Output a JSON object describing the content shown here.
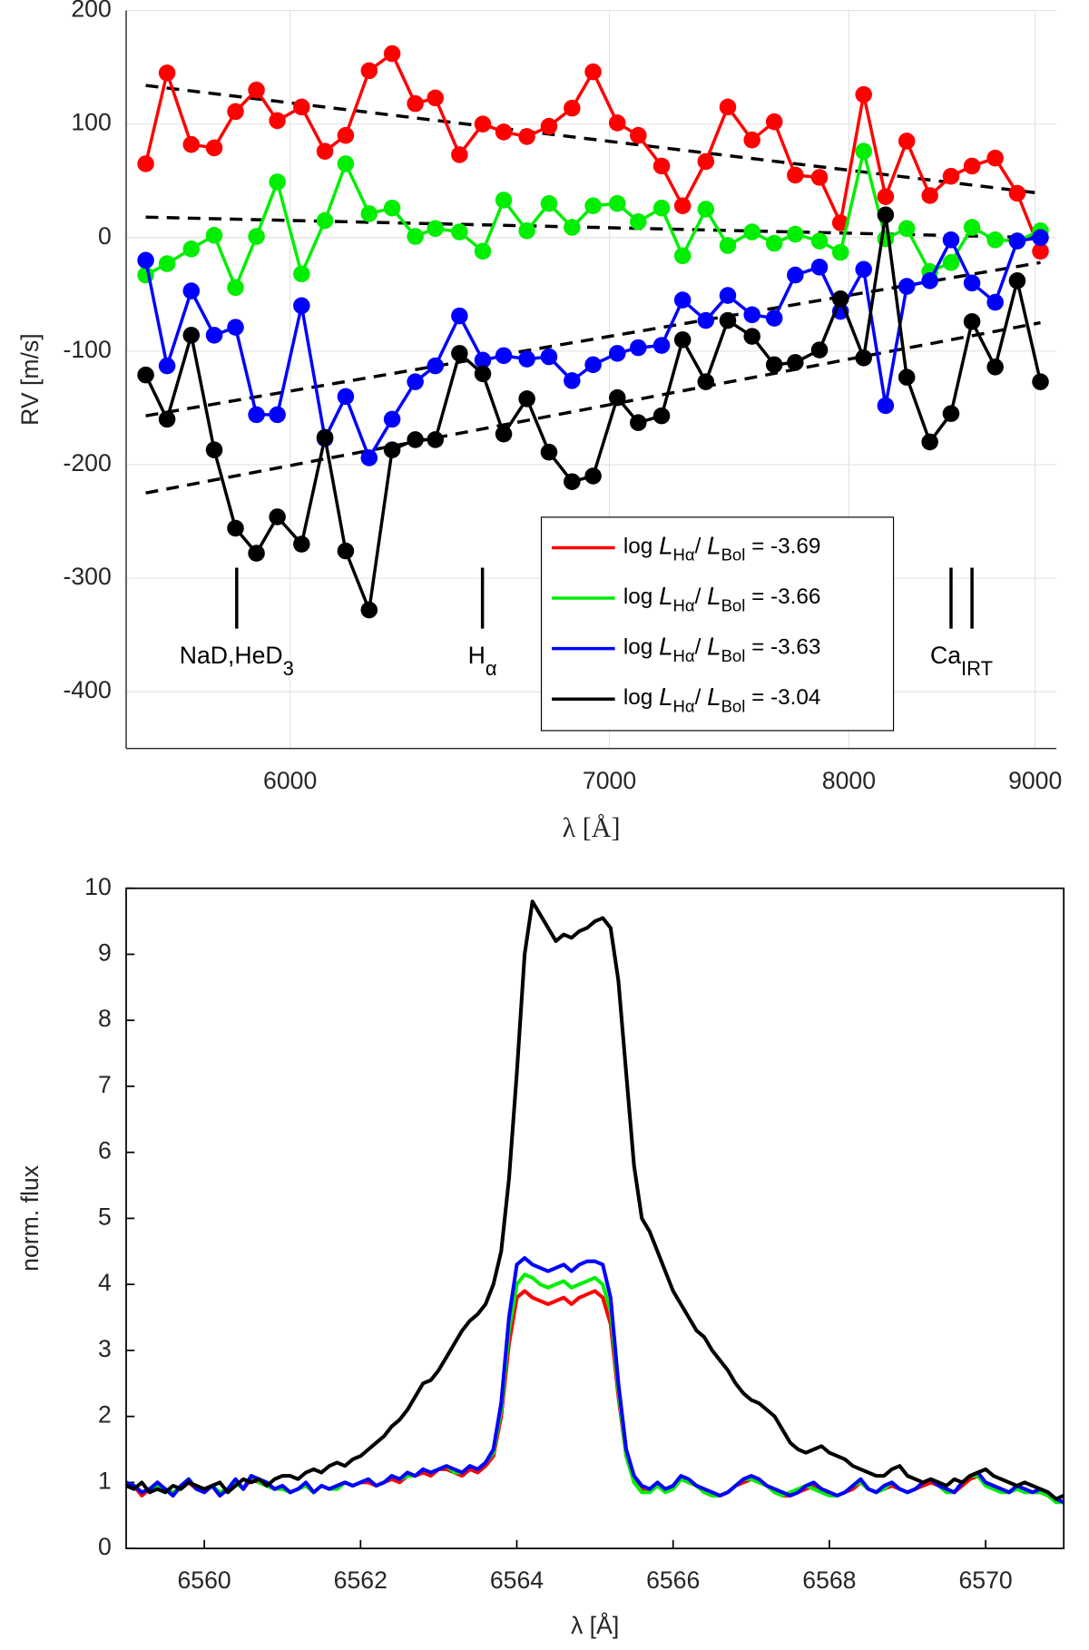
{
  "chart_data": [
    {
      "type": "line",
      "markers": true,
      "xscale": "reciprocal",
      "grid": true,
      "xlabel": "λ [Å]",
      "ylabel": "RV [m/s]",
      "xlim": [
        5590,
        9130
      ],
      "ylim": [
        -450,
        200
      ],
      "xticks": [
        6000,
        7000,
        8000,
        9000
      ],
      "yticks": [
        200,
        100,
        0,
        -100,
        -200,
        -300,
        -400
      ],
      "x": [
        5636,
        5687,
        5746,
        5803,
        5857,
        5911,
        5966,
        6031,
        6095,
        6153,
        6220,
        6287,
        6356,
        6417,
        6492,
        6566,
        6634,
        6711,
        6786,
        6866,
        6941,
        7029,
        7107,
        7196,
        7278,
        7371,
        7461,
        7563,
        7659,
        7752,
        7862,
        7960,
        8071,
        8179,
        8286,
        8406,
        8519,
        8634,
        8765,
        8893,
        9032
      ],
      "legend_text_style": [
        "normal",
        "italic",
        "sub",
        "normal",
        "italic",
        "sub",
        "normal"
      ],
      "series": [
        {
          "name": [
            "log ",
            "L",
            "Hα",
            "/ ",
            "L",
            "Bol",
            " = -3.69"
          ],
          "color": "#ff0000",
          "values": [
            65,
            145,
            82,
            79,
            111,
            130,
            103,
            115,
            76,
            90,
            147,
            162,
            118,
            123,
            73,
            100,
            93,
            89,
            98,
            114,
            146,
            101,
            90,
            63,
            28,
            67,
            115,
            86,
            102,
            55,
            53,
            13,
            126,
            36,
            85,
            37,
            54,
            63,
            70,
            39,
            -12
          ]
        },
        {
          "name": [
            "log ",
            "L",
            "Hα",
            "/ ",
            "L",
            "Bol",
            " = -3.66"
          ],
          "color": "#00ee00",
          "values": [
            -33,
            -23,
            -10,
            2,
            -44,
            1,
            49,
            -32,
            15,
            65,
            21,
            26,
            1,
            8,
            5,
            -12,
            33,
            6,
            30,
            9,
            28,
            30,
            14,
            26,
            -16,
            25,
            -7,
            5,
            -5,
            3,
            -3,
            -13,
            76,
            -1,
            8,
            -30,
            -22,
            9,
            -2,
            -3,
            6
          ]
        },
        {
          "name": [
            "log ",
            "L",
            "Hα",
            "/ ",
            "L",
            "Bol",
            " = -3.63"
          ],
          "color": "#0000ff",
          "values": [
            -20,
            -113,
            -47,
            -86,
            -79,
            -156,
            -156,
            -60,
            -177,
            -140,
            -194,
            -160,
            -127,
            -113,
            -69,
            -108,
            -104,
            -107,
            -105,
            -126,
            -112,
            -102,
            -97,
            -95,
            -55,
            -73,
            -51,
            -68,
            -71,
            -33,
            -26,
            -65,
            -28,
            -148,
            -43,
            -38,
            -2,
            -40,
            -57,
            -3,
            0
          ]
        },
        {
          "name": [
            "log ",
            "L",
            "Hα",
            "/ ",
            "L",
            "Bol",
            " = -3.04"
          ],
          "color": "#000000",
          "values": [
            -121,
            -160,
            -86,
            -187,
            -256,
            -278,
            -246,
            -270,
            -176,
            -276,
            -328,
            -187,
            -178,
            -178,
            -102,
            -120,
            -173,
            -142,
            -189,
            -215,
            -210,
            -141,
            -163,
            -157,
            -90,
            -127,
            -73,
            -87,
            -112,
            -110,
            -99,
            -54,
            -106,
            20,
            -123,
            -180,
            -155,
            -74,
            -114,
            -38,
            -127
          ]
        }
      ],
      "trend_lines": [
        {
          "x": [
            5636,
            9032
          ],
          "values": [
            134,
            39
          ]
        },
        {
          "x": [
            5636,
            9032
          ],
          "values": [
            18,
            0
          ]
        },
        {
          "x": [
            5636,
            9032
          ],
          "values": [
            -157,
            -22
          ]
        },
        {
          "x": [
            5636,
            9032
          ],
          "values": [
            -225,
            -75
          ]
        }
      ],
      "trend_color": "#000000",
      "trend_style": "dashed",
      "annotations": [
        {
          "text": "NaD,HeD",
          "sub": "3",
          "x": [
            5860
          ]
        },
        {
          "text": "H",
          "sub": "α",
          "x": [
            6565
          ]
        },
        {
          "text": "Ca",
          "sub": "IRT",
          "x": [
            8519,
            8634
          ]
        }
      ]
    },
    {
      "type": "line",
      "markers": false,
      "xscale": "linear",
      "grid": false,
      "xlabel": "λ [Å]",
      "ylabel": "norm. flux",
      "xlim": [
        6559,
        6571
      ],
      "ylim": [
        0,
        10
      ],
      "xticks": [
        6560,
        6562,
        6564,
        6566,
        6568,
        6570
      ],
      "yticks": [
        0,
        1,
        2,
        3,
        4,
        5,
        6,
        7,
        8,
        9,
        10
      ],
      "x": [
        6559,
        6559.1,
        6559.2,
        6559.3,
        6559.4,
        6559.5,
        6559.6,
        6559.7,
        6559.8,
        6559.9,
        6560,
        6560.1,
        6560.2,
        6560.3,
        6560.4,
        6560.5,
        6560.6,
        6560.7,
        6560.8,
        6560.9,
        6561,
        6561.1,
        6561.2,
        6561.3,
        6561.4,
        6561.5,
        6561.6,
        6561.7,
        6561.8,
        6561.9,
        6562,
        6562.1,
        6562.2,
        6562.3,
        6562.4,
        6562.5,
        6562.6,
        6562.7,
        6562.8,
        6562.9,
        6563,
        6563.1,
        6563.2,
        6563.3,
        6563.4,
        6563.5,
        6563.6,
        6563.7,
        6563.8,
        6563.9,
        6564,
        6564.1,
        6564.2,
        6564.3,
        6564.4,
        6564.5,
        6564.6,
        6564.7,
        6564.8,
        6564.9,
        6565,
        6565.1,
        6565.2,
        6565.3,
        6565.4,
        6565.5,
        6565.6,
        6565.7,
        6565.8,
        6565.9,
        6566,
        6566.1,
        6566.2,
        6566.3,
        6566.4,
        6566.5,
        6566.6,
        6566.7,
        6566.8,
        6566.9,
        6567,
        6567.1,
        6567.2,
        6567.3,
        6567.4,
        6567.5,
        6567.6,
        6567.7,
        6567.8,
        6567.9,
        6568,
        6568.1,
        6568.2,
        6568.3,
        6568.4,
        6568.5,
        6568.6,
        6568.7,
        6568.8,
        6568.9,
        6569,
        6569.1,
        6569.2,
        6569.3,
        6569.4,
        6569.5,
        6569.6,
        6569.7,
        6569.8,
        6569.9,
        6570,
        6570.1,
        6570.2,
        6570.3,
        6570.4,
        6570.5,
        6570.6,
        6570.7,
        6570.8,
        6570.9,
        6571
      ],
      "series": [
        {
          "color": "#ff0000",
          "values": [
            1.0,
            0.95,
            0.8,
            0.9,
            1.0,
            0.9,
            0.8,
            0.95,
            1.0,
            0.9,
            0.85,
            0.95,
            0.8,
            0.9,
            1.0,
            0.9,
            1.05,
            1.0,
            0.95,
            0.9,
            0.95,
            0.85,
            0.9,
            0.95,
            0.85,
            0.95,
            0.9,
            0.95,
            1.0,
            0.95,
            1.0,
            1.0,
            0.95,
            1.0,
            1.05,
            1.0,
            1.1,
            1.1,
            1.15,
            1.1,
            1.2,
            1.2,
            1.15,
            1.1,
            1.2,
            1.15,
            1.25,
            1.4,
            2.0,
            3.1,
            3.8,
            3.9,
            3.8,
            3.75,
            3.7,
            3.75,
            3.8,
            3.7,
            3.8,
            3.85,
            3.9,
            3.8,
            3.4,
            2.3,
            1.4,
            1.05,
            0.9,
            0.9,
            0.95,
            0.9,
            0.9,
            1.05,
            1.0,
            0.95,
            0.85,
            0.8,
            0.8,
            0.85,
            0.95,
            1.0,
            1.05,
            1.0,
            0.95,
            0.85,
            0.8,
            0.8,
            0.85,
            0.9,
            0.95,
            0.9,
            0.85,
            0.8,
            0.85,
            0.9,
            1.0,
            0.9,
            0.85,
            0.9,
            0.95,
            0.9,
            0.85,
            0.9,
            0.95,
            1.0,
            0.95,
            0.9,
            0.85,
            0.95,
            1.05,
            1.1,
            1.0,
            0.95,
            0.9,
            0.85,
            0.9,
            0.9,
            0.85,
            0.85,
            0.8,
            0.75,
            0.7
          ]
        },
        {
          "color": "#00ee00",
          "values": [
            1.0,
            0.95,
            0.85,
            0.9,
            0.95,
            0.9,
            0.85,
            0.9,
            1.05,
            0.9,
            0.85,
            0.95,
            0.85,
            0.9,
            1.0,
            0.9,
            1.1,
            1.0,
            0.95,
            0.9,
            0.9,
            0.85,
            0.9,
            0.95,
            0.85,
            0.95,
            0.9,
            0.9,
            1.0,
            0.95,
            1.0,
            1.05,
            0.95,
            1.0,
            1.1,
            1.05,
            1.1,
            1.1,
            1.2,
            1.15,
            1.2,
            1.25,
            1.15,
            1.15,
            1.25,
            1.2,
            1.3,
            1.45,
            2.1,
            3.3,
            4.0,
            4.15,
            4.1,
            4.0,
            3.95,
            4.0,
            4.05,
            3.95,
            4.0,
            4.05,
            4.1,
            4.0,
            3.6,
            2.4,
            1.4,
            1.0,
            0.85,
            0.85,
            0.95,
            0.85,
            0.9,
            1.05,
            1.0,
            0.95,
            0.85,
            0.8,
            0.8,
            0.85,
            0.95,
            1.05,
            1.05,
            1.0,
            0.95,
            0.85,
            0.8,
            0.85,
            0.9,
            0.95,
            0.9,
            0.85,
            0.8,
            0.8,
            0.85,
            0.95,
            1.0,
            0.9,
            0.85,
            0.9,
            1.0,
            0.9,
            0.85,
            0.9,
            1.0,
            1.05,
            0.95,
            0.85,
            0.85,
            1.0,
            1.1,
            1.1,
            0.95,
            0.9,
            0.85,
            0.85,
            0.9,
            0.85,
            0.85,
            0.85,
            0.8,
            0.7,
            0.7
          ]
        },
        {
          "color": "#0000ff",
          "values": [
            1.0,
            0.95,
            0.85,
            0.9,
            1.0,
            0.9,
            0.8,
            0.95,
            1.05,
            0.9,
            0.85,
            0.95,
            0.8,
            0.9,
            1.05,
            0.9,
            1.1,
            1.05,
            1.0,
            0.9,
            0.95,
            0.85,
            0.9,
            1.0,
            0.85,
            0.95,
            0.9,
            0.95,
            1.0,
            0.95,
            1.0,
            1.05,
            0.95,
            1.0,
            1.1,
            1.05,
            1.15,
            1.1,
            1.2,
            1.15,
            1.2,
            1.25,
            1.2,
            1.15,
            1.25,
            1.2,
            1.3,
            1.5,
            2.2,
            3.5,
            4.3,
            4.4,
            4.3,
            4.25,
            4.2,
            4.25,
            4.3,
            4.2,
            4.3,
            4.35,
            4.35,
            4.3,
            3.8,
            2.5,
            1.5,
            1.1,
            0.95,
            0.9,
            1.0,
            0.9,
            0.95,
            1.1,
            1.05,
            0.95,
            0.9,
            0.85,
            0.8,
            0.85,
            0.95,
            1.05,
            1.1,
            1.05,
            0.95,
            0.9,
            0.85,
            0.8,
            0.85,
            0.95,
            1.0,
            0.9,
            0.85,
            0.8,
            0.85,
            0.95,
            1.05,
            0.9,
            0.85,
            0.95,
            1.0,
            0.9,
            0.85,
            0.9,
            1.0,
            1.05,
            0.95,
            0.9,
            0.85,
            1.0,
            1.1,
            1.15,
            1.0,
            0.95,
            0.9,
            0.85,
            0.95,
            0.9,
            0.85,
            0.9,
            0.85,
            0.75,
            0.7
          ]
        },
        {
          "color": "#000000",
          "values": [
            0.95,
            0.9,
            1.0,
            0.85,
            0.9,
            0.85,
            0.95,
            0.9,
            1.0,
            0.95,
            0.9,
            0.95,
            1.0,
            0.85,
            0.95,
            1.05,
            1.0,
            1.05,
            0.95,
            1.05,
            1.1,
            1.1,
            1.05,
            1.15,
            1.2,
            1.15,
            1.25,
            1.3,
            1.25,
            1.35,
            1.4,
            1.5,
            1.6,
            1.7,
            1.85,
            1.95,
            2.1,
            2.3,
            2.5,
            2.55,
            2.7,
            2.9,
            3.1,
            3.3,
            3.45,
            3.55,
            3.7,
            4.0,
            4.5,
            5.6,
            7.2,
            9.0,
            9.8,
            9.6,
            9.4,
            9.2,
            9.3,
            9.25,
            9.35,
            9.4,
            9.5,
            9.55,
            9.4,
            8.6,
            7.2,
            5.8,
            5.0,
            4.8,
            4.5,
            4.2,
            3.9,
            3.7,
            3.5,
            3.3,
            3.2,
            3.0,
            2.85,
            2.7,
            2.5,
            2.35,
            2.25,
            2.2,
            2.1,
            2.0,
            1.8,
            1.6,
            1.5,
            1.45,
            1.5,
            1.55,
            1.45,
            1.4,
            1.35,
            1.25,
            1.2,
            1.15,
            1.1,
            1.1,
            1.2,
            1.25,
            1.1,
            1.05,
            1.0,
            1.05,
            1.0,
            0.95,
            1.05,
            1.0,
            1.1,
            1.15,
            1.2,
            1.1,
            1.05,
            1.0,
            0.95,
            1.0,
            0.95,
            0.9,
            0.85,
            0.75,
            0.8
          ]
        }
      ]
    }
  ]
}
